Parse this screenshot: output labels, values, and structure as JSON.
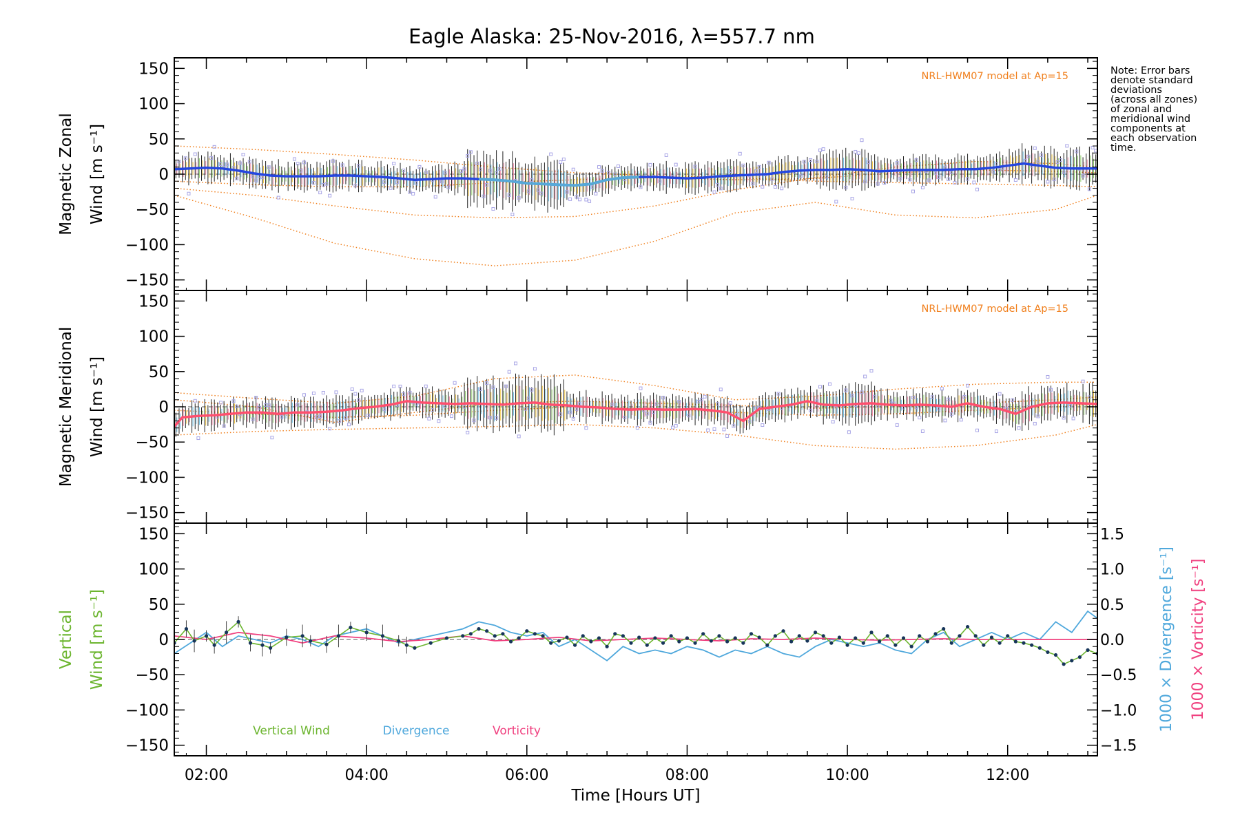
{
  "title": "Eagle Alaska: 25-Nov-2016, λ=557.7 nm",
  "note_lines": [
    "Note: Error bars",
    "denote standard",
    "deviations",
    "(across all zones)",
    "of zonal and",
    "meridional wind",
    "components at",
    "each observation",
    "time."
  ],
  "colors": {
    "zonal": "#2446e0",
    "zonal_light": "#57a8d8",
    "meridional": "#ff4f6e",
    "model": "#f07f1c",
    "scatter": "#a9a6e6",
    "vertical": "#6cb52f",
    "vertical_marker": "#17355a",
    "divergence": "#4fa8dc",
    "vorticity": "#f0407f",
    "axis": "#000000"
  },
  "chart_data": [
    {
      "type": "line",
      "panel": "zonal",
      "ylabel": [
        "Magnetic Zonal",
        "Wind [m s⁻¹]"
      ],
      "annotation": "NRL-HWM07 model at Ap=15",
      "ylim": [
        -165,
        165
      ],
      "yticks": [
        150,
        100,
        50,
        0,
        -50,
        -100,
        -150
      ],
      "xlim": [
        1.6,
        13.12
      ],
      "series": [
        {
          "name": "",
          "x": [
            1.6,
            1.8,
            2.0,
            2.2,
            2.4,
            2.6,
            2.8,
            3.0,
            3.2,
            3.4,
            3.6,
            3.8,
            4.0,
            4.2,
            4.4,
            4.6,
            4.8,
            5.0,
            5.2,
            5.4,
            5.6,
            5.8,
            6.0,
            6.2,
            6.4,
            6.6,
            6.8,
            7.0,
            7.2,
            7.4,
            7.6,
            7.8,
            8.0,
            8.2,
            8.4,
            8.6,
            8.8,
            9.0,
            9.2,
            9.4,
            9.6,
            9.8,
            10.0,
            10.2,
            10.4,
            10.6,
            10.8,
            11.0,
            11.2,
            11.4,
            11.6,
            11.8,
            12.0,
            12.2,
            12.4,
            12.6,
            12.8,
            13.0,
            13.12
          ],
          "values": [
            7,
            8,
            9,
            8,
            5,
            1,
            -2,
            -3,
            -3,
            -3,
            -2,
            -2,
            -3,
            -4,
            -6,
            -8,
            -7,
            -6,
            -6,
            -7,
            -8,
            -10,
            -13,
            -14,
            -15,
            -16,
            -14,
            -8,
            -5,
            -4,
            -4,
            -5,
            -6,
            -5,
            -3,
            -2,
            -1,
            0,
            3,
            5,
            6,
            6,
            7,
            6,
            4,
            5,
            6,
            6,
            6,
            7,
            7,
            9,
            12,
            15,
            12,
            9,
            8,
            8,
            8
          ]
        }
      ],
      "model_lines": [
        {
          "x": [
            1.6,
            2.6,
            3.6,
            4.6,
            5.6,
            6.6,
            7.6,
            8.6,
            9.6,
            10.6,
            11.6,
            12.6,
            13.12
          ],
          "values": [
            40,
            35,
            28,
            20,
            10,
            2,
            -2,
            -5,
            -10,
            -12,
            -14,
            -16,
            -18
          ]
        },
        {
          "x": [
            1.6,
            2.6,
            3.6,
            4.6,
            5.6,
            6.6,
            7.6,
            8.6,
            9.6,
            10.6,
            11.6,
            12.6,
            13.12
          ],
          "values": [
            -20,
            -30,
            -45,
            -58,
            -62,
            -60,
            -45,
            -22,
            -5,
            10,
            18,
            15,
            10
          ]
        },
        {
          "x": [
            1.6,
            2.6,
            3.6,
            4.6,
            5.6,
            6.6,
            7.6,
            8.6,
            9.6,
            10.6,
            11.6,
            12.6,
            13.12
          ],
          "values": [
            -30,
            -62,
            -98,
            -120,
            -130,
            -122,
            -95,
            -55,
            -40,
            -58,
            -62,
            -50,
            -30
          ]
        },
        {
          "x": [
            1.6,
            2.6,
            3.6,
            4.6,
            5.6,
            6.6,
            7.6,
            8.6,
            9.6,
            10.6,
            11.6,
            12.6,
            13.12
          ],
          "values": [
            -10,
            -15,
            -18,
            -18,
            -12,
            -8,
            -5,
            -8,
            -6,
            2,
            6,
            4,
            2
          ]
        }
      ]
    },
    {
      "type": "line",
      "panel": "meridional",
      "ylabel": [
        "Magnetic Meridional",
        "Wind [m s⁻¹]"
      ],
      "annotation": "NRL-HWM07 model at Ap=15",
      "ylim": [
        -165,
        165
      ],
      "yticks": [
        150,
        100,
        50,
        0,
        -50,
        -100,
        -150
      ],
      "xlim": [
        1.6,
        13.12
      ],
      "series": [
        {
          "name": "",
          "x": [
            1.6,
            1.7,
            1.9,
            2.1,
            2.3,
            2.5,
            2.7,
            2.9,
            3.1,
            3.3,
            3.5,
            3.7,
            3.9,
            4.1,
            4.3,
            4.5,
            4.7,
            4.9,
            5.1,
            5.3,
            5.5,
            5.7,
            5.9,
            6.1,
            6.3,
            6.5,
            6.7,
            6.9,
            7.1,
            7.3,
            7.5,
            7.7,
            7.9,
            8.1,
            8.3,
            8.5,
            8.7,
            8.9,
            9.1,
            9.3,
            9.5,
            9.7,
            9.9,
            10.1,
            10.3,
            10.5,
            10.7,
            10.9,
            11.1,
            11.3,
            11.5,
            11.7,
            11.9,
            12.1,
            12.3,
            12.5,
            12.7,
            12.9,
            13.12
          ],
          "values": [
            -28,
            -15,
            -13,
            -12,
            -10,
            -8,
            -8,
            -10,
            -8,
            -8,
            -7,
            -5,
            -2,
            0,
            3,
            8,
            6,
            5,
            4,
            5,
            4,
            3,
            5,
            6,
            3,
            2,
            0,
            -1,
            -3,
            -4,
            -3,
            -4,
            -4,
            -3,
            -5,
            -8,
            -20,
            -3,
            0,
            3,
            8,
            3,
            2,
            4,
            5,
            3,
            2,
            3,
            2,
            0,
            5,
            0,
            -3,
            -10,
            0,
            5,
            6,
            5,
            4
          ]
        }
      ],
      "model_lines": [
        {
          "x": [
            1.6,
            2.6,
            3.6,
            4.6,
            5.6,
            6.6,
            7.6,
            8.6,
            9.6,
            10.6,
            11.6,
            12.6,
            13.12
          ],
          "values": [
            20,
            12,
            5,
            15,
            40,
            45,
            30,
            10,
            15,
            25,
            32,
            35,
            35
          ]
        },
        {
          "x": [
            1.6,
            2.6,
            3.6,
            4.6,
            5.6,
            6.6,
            7.6,
            8.6,
            9.6,
            10.6,
            11.6,
            12.6,
            13.12
          ],
          "values": [
            -40,
            -35,
            -32,
            -30,
            -28,
            -25,
            -30,
            -40,
            -55,
            -60,
            -55,
            -40,
            -25
          ]
        },
        {
          "x": [
            1.6,
            2.6,
            3.6,
            4.6,
            5.6,
            6.6,
            7.6,
            8.6,
            9.6,
            10.6,
            11.6,
            12.6,
            13.12
          ],
          "values": [
            10,
            0,
            -22,
            -8,
            5,
            8,
            5,
            2,
            -2,
            0,
            5,
            10,
            14
          ]
        },
        {
          "x": [
            1.6,
            2.6,
            3.6,
            4.6,
            5.6,
            6.6,
            7.6,
            8.6,
            9.6,
            10.6,
            11.6,
            12.6,
            13.12
          ],
          "values": [
            -5,
            -10,
            -15,
            -12,
            -5,
            0,
            -3,
            -8,
            -12,
            -10,
            -5,
            0,
            5
          ]
        }
      ]
    },
    {
      "type": "line",
      "panel": "vertical",
      "ylabel": [
        "Vertical",
        "Wind [m s⁻¹]"
      ],
      "ylabel_right_1": "1000 × Divergence [s⁻¹]",
      "ylabel_right_2": "1000 × Vorticity [s⁻¹]",
      "ylim": [
        -165,
        165
      ],
      "yticks": [
        150,
        100,
        50,
        0,
        -50,
        -100,
        -150
      ],
      "ylim_right": [
        -1.65,
        1.65
      ],
      "yticks_right": [
        1.5,
        1.0,
        0.5,
        0.0,
        -0.5,
        -1.0,
        -1.5
      ],
      "ytick_labels_right": [
        "1.5",
        "1.0",
        "0.5",
        "0.0",
        "−0.5",
        "−1.0",
        "−1.5"
      ],
      "xlabel": "Time [Hours UT]",
      "xlim": [
        1.6,
        13.12
      ],
      "xticks": [
        2,
        4,
        6,
        8,
        10,
        12
      ],
      "xtick_labels": [
        "02:00",
        "04:00",
        "06:00",
        "08:00",
        "10:00",
        "12:00"
      ],
      "legend": [
        "Vertical Wind",
        "Divergence",
        "Vorticity"
      ],
      "series": [
        {
          "name": "Vertical Wind",
          "x": [
            1.6,
            1.75,
            1.85,
            2.0,
            2.1,
            2.25,
            2.4,
            2.55,
            2.7,
            2.8,
            3.0,
            3.2,
            3.3,
            3.5,
            3.65,
            3.8,
            4.0,
            4.2,
            4.4,
            4.5,
            4.6,
            4.8,
            5.0,
            5.2,
            5.3,
            5.4,
            5.5,
            5.6,
            5.7,
            5.8,
            5.9,
            6.0,
            6.1,
            6.2,
            6.3,
            6.4,
            6.5,
            6.6,
            6.7,
            6.8,
            6.9,
            7.0,
            7.1,
            7.2,
            7.3,
            7.4,
            7.5,
            7.6,
            7.7,
            7.8,
            7.9,
            8.0,
            8.1,
            8.2,
            8.3,
            8.4,
            8.5,
            8.6,
            8.7,
            8.8,
            8.9,
            9.0,
            9.1,
            9.2,
            9.3,
            9.4,
            9.5,
            9.6,
            9.7,
            9.8,
            9.9,
            10.0,
            10.1,
            10.2,
            10.3,
            10.4,
            10.5,
            10.6,
            10.7,
            10.8,
            10.9,
            11.0,
            11.1,
            11.2,
            11.3,
            11.4,
            11.5,
            11.6,
            11.7,
            11.8,
            11.9,
            12.0,
            12.1,
            12.2,
            12.3,
            12.4,
            12.5,
            12.6,
            12.7,
            12.8,
            12.9,
            13.0,
            13.12
          ],
          "values": [
            -5,
            15,
            -2,
            5,
            -8,
            10,
            25,
            -5,
            -8,
            -12,
            3,
            5,
            -2,
            -7,
            5,
            17,
            10,
            5,
            -2,
            -8,
            -12,
            -5,
            2,
            5,
            8,
            15,
            12,
            5,
            8,
            -3,
            2,
            12,
            8,
            5,
            -5,
            -2,
            3,
            -8,
            5,
            -3,
            2,
            -10,
            8,
            5,
            -5,
            3,
            -8,
            2,
            -5,
            5,
            -3,
            2,
            -5,
            8,
            -2,
            5,
            -3,
            2,
            -5,
            8,
            3,
            -8,
            5,
            12,
            -3,
            5,
            -2,
            10,
            5,
            -5,
            3,
            -8,
            2,
            -5,
            10,
            -3,
            5,
            -8,
            2,
            -10,
            5,
            -3,
            8,
            15,
            -5,
            5,
            18,
            5,
            -8,
            3,
            -5,
            5,
            -3,
            -5,
            -8,
            -12,
            -18,
            -22,
            -35,
            -30,
            -25,
            -15,
            -20
          ]
        },
        {
          "name": "Divergence",
          "x": [
            1.6,
            1.8,
            2.0,
            2.2,
            2.4,
            2.6,
            2.8,
            3.0,
            3.2,
            3.4,
            3.6,
            3.8,
            4.0,
            4.2,
            4.4,
            4.6,
            4.8,
            5.0,
            5.2,
            5.4,
            5.6,
            5.8,
            6.0,
            6.2,
            6.4,
            6.6,
            6.8,
            7.0,
            7.2,
            7.4,
            7.6,
            7.8,
            8.0,
            8.2,
            8.4,
            8.6,
            8.8,
            9.0,
            9.2,
            9.4,
            9.6,
            9.8,
            10.0,
            10.2,
            10.4,
            10.6,
            10.8,
            11.0,
            11.2,
            11.4,
            11.6,
            11.8,
            12.0,
            12.2,
            12.4,
            12.6,
            12.8,
            13.0,
            13.12
          ],
          "values": [
            -0.2,
            -0.05,
            0.1,
            -0.1,
            0.05,
            0.0,
            -0.05,
            0.05,
            0.0,
            -0.1,
            0.05,
            0.1,
            0.15,
            0.05,
            -0.05,
            0.0,
            0.05,
            0.1,
            0.15,
            0.25,
            0.2,
            0.1,
            0.05,
            0.1,
            -0.1,
            0.0,
            -0.15,
            -0.3,
            -0.1,
            -0.2,
            -0.15,
            -0.2,
            -0.1,
            -0.15,
            -0.25,
            -0.15,
            -0.2,
            -0.1,
            -0.2,
            -0.25,
            -0.1,
            0.0,
            -0.05,
            -0.1,
            -0.05,
            -0.15,
            -0.2,
            0.0,
            0.1,
            -0.1,
            0.0,
            0.1,
            0.0,
            0.1,
            0.0,
            0.25,
            0.1,
            0.4,
            0.3
          ]
        },
        {
          "name": "Vorticity",
          "x": [
            1.6,
            2.0,
            2.4,
            2.8,
            3.2,
            3.6,
            4.0,
            4.4,
            4.8,
            5.2,
            5.6,
            6.0,
            6.4,
            6.8,
            7.2,
            7.6,
            8.0,
            8.4,
            8.8,
            9.2,
            9.6,
            10.0,
            10.4,
            10.8,
            11.2,
            11.6,
            12.0,
            12.4,
            12.8,
            13.12
          ],
          "values": [
            0.05,
            0.0,
            0.1,
            0.05,
            -0.05,
            0.05,
            0.02,
            -0.03,
            0.0,
            0.05,
            -0.02,
            0.0,
            0.03,
            -0.02,
            0.0,
            0.02,
            0.0,
            -0.02,
            0.01,
            0.0,
            0.02,
            0.0,
            -0.01,
            0.0,
            0.01,
            0.0,
            0.0,
            0.0,
            0.0,
            0.0
          ]
        }
      ]
    }
  ]
}
